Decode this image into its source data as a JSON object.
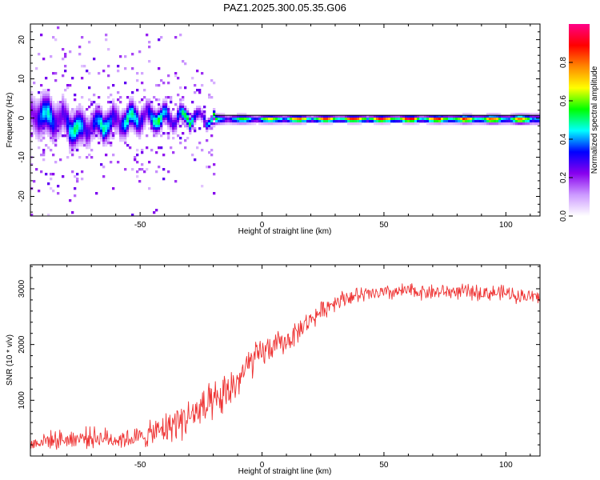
{
  "figure_title": "PAZ1.2025.300.05.35.G06",
  "chart_data": [
    {
      "type": "heatmap",
      "title": "PAZ1.2025.300.05.35.G06",
      "xlabel": "Height of straight line (km)",
      "ylabel": "Frequency (Hz)",
      "xlim": [
        -95,
        114
      ],
      "ylim": [
        -25,
        24
      ],
      "x_ticks": [
        -50,
        0,
        50,
        100
      ],
      "x_tick_labels": [
        "-50",
        "0",
        "50",
        "100"
      ],
      "y_ticks": [
        -20,
        -10,
        0,
        10,
        20
      ],
      "y_tick_labels": [
        "-20",
        "-10",
        "0",
        "10",
        "20"
      ],
      "colorbar": {
        "label": "Normalized spectral amplitude",
        "range": [
          0,
          1
        ],
        "ticks": [
          0.0,
          0.2,
          0.4,
          0.6,
          0.8
        ],
        "tick_labels": [
          "0.0",
          "0.2",
          "0.4",
          "0.6",
          "0.8"
        ],
        "colors": [
          "#ffffff",
          "#cc99ff",
          "#8800ee",
          "#0000ff",
          "#00ffff",
          "#00ff00",
          "#ffff00",
          "#ff8800",
          "#ff0000",
          "#ff0088"
        ]
      },
      "signal_track": [
        {
          "x": -95,
          "f": 1.0,
          "amp": 0.45,
          "spread": 4.0
        },
        {
          "x": -85,
          "f": 0.5,
          "amp": 0.45,
          "spread": 4.0
        },
        {
          "x": -80,
          "f": -1.0,
          "amp": 0.5,
          "spread": 3.5
        },
        {
          "x": -75,
          "f": -3.0,
          "amp": 0.5,
          "spread": 3.5
        },
        {
          "x": -70,
          "f": -1.5,
          "amp": 0.5,
          "spread": 3.0
        },
        {
          "x": -60,
          "f": -0.5,
          "amp": 0.5,
          "spread": 3.0
        },
        {
          "x": -50,
          "f": 0.5,
          "amp": 0.52,
          "spread": 2.8
        },
        {
          "x": -40,
          "f": 0.5,
          "amp": 0.55,
          "spread": 2.2
        },
        {
          "x": -30,
          "f": 0.3,
          "amp": 0.55,
          "spread": 1.6
        },
        {
          "x": -20,
          "f": 0.0,
          "amp": 0.55,
          "spread": 1.0
        },
        {
          "x": -10,
          "f": 0.0,
          "amp": 0.6,
          "spread": 0.9
        },
        {
          "x": 0,
          "f": 0.0,
          "amp": 0.7,
          "spread": 0.8
        },
        {
          "x": 10,
          "f": 0.0,
          "amp": 0.75,
          "spread": 0.8
        },
        {
          "x": 20,
          "f": 0.0,
          "amp": 0.85,
          "spread": 0.7
        },
        {
          "x": 40,
          "f": 0.0,
          "amp": 0.95,
          "spread": 0.7
        },
        {
          "x": 60,
          "f": 0.0,
          "amp": 0.95,
          "spread": 0.7
        },
        {
          "x": 80,
          "f": 0.0,
          "amp": 0.85,
          "spread": 0.8
        },
        {
          "x": 100,
          "f": 0.0,
          "amp": 0.8,
          "spread": 0.9
        },
        {
          "x": 114,
          "f": 0.0,
          "amp": 0.75,
          "spread": 1.0
        }
      ],
      "reference_line_f": 0.0
    },
    {
      "type": "line",
      "xlabel": "Height of straight line (km)",
      "ylabel": "SNR (10 * v/v)",
      "xlim": [
        -95,
        114
      ],
      "ylim": [
        0,
        3430
      ],
      "x_ticks": [
        -50,
        0,
        50,
        100
      ],
      "x_tick_labels": [
        "-50",
        "0",
        "50",
        "100"
      ],
      "y_ticks": [
        1000,
        2000,
        3000
      ],
      "y_tick_labels": [
        "1000",
        "2000",
        "3000"
      ],
      "line_color": "#ee3333",
      "series": [
        {
          "name": "SNR",
          "x": [
            -95,
            -90,
            -80,
            -70,
            -60,
            -50,
            -40,
            -35,
            -30,
            -25,
            -20,
            -15,
            -10,
            -5,
            0,
            5,
            10,
            15,
            20,
            25,
            30,
            35,
            40,
            50,
            60,
            70,
            80,
            90,
            100,
            105,
            110,
            114
          ],
          "values": [
            200,
            280,
            300,
            340,
            300,
            330,
            480,
            620,
            700,
            820,
            900,
            1100,
            1350,
            1650,
            1850,
            1980,
            2050,
            2250,
            2450,
            2620,
            2780,
            2850,
            2880,
            2920,
            2960,
            2940,
            2950,
            2930,
            2920,
            2880,
            2860,
            2850
          ],
          "noise": [
            160,
            180,
            200,
            220,
            210,
            230,
            330,
            400,
            420,
            450,
            470,
            450,
            420,
            380,
            320,
            280,
            260,
            240,
            210,
            200,
            190,
            180,
            180,
            170,
            170,
            170,
            160,
            170,
            170,
            160,
            160,
            160
          ]
        }
      ]
    }
  ]
}
